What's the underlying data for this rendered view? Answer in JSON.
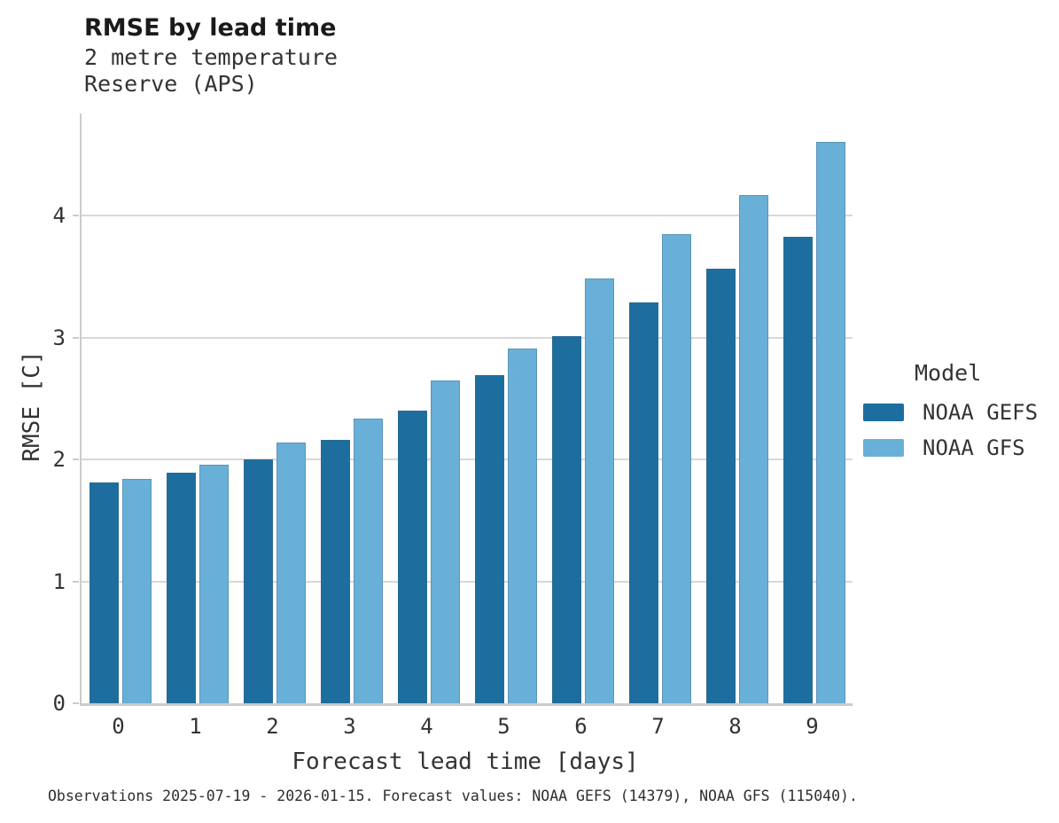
{
  "header": {
    "title": "RMSE by lead time",
    "subtitle_line1": "2 metre temperature",
    "subtitle_line2": "Reserve (APS)"
  },
  "legend": {
    "title": "Model",
    "entries": [
      {
        "label": "NOAA GEFS",
        "color": "#1d6e9f"
      },
      {
        "label": "NOAA GFS",
        "color": "#69b0d8"
      }
    ]
  },
  "caption": "Observations 2025-07-19 - 2026-01-15. Forecast values: NOAA GEFS (14379), NOAA GFS (115040).",
  "colors": {
    "gridline": "#d8d8d8",
    "axis_spine": "#cbcbcb",
    "series_dark_blue": "#1d6e9f",
    "series_light_blue": "#69b0d8"
  },
  "chart_data": {
    "type": "bar",
    "title": "RMSE by lead time",
    "subtitle": "2 metre temperature / Reserve (APS)",
    "xlabel": "Forecast lead time [days]",
    "ylabel": "RMSE [C]",
    "categories": [
      "0",
      "1",
      "2",
      "3",
      "4",
      "5",
      "6",
      "7",
      "8",
      "9"
    ],
    "series": [
      {
        "name": "NOAA GEFS",
        "color": "#1d6e9f",
        "values": [
          1.81,
          1.89,
          2.0,
          2.16,
          2.4,
          2.69,
          3.01,
          3.29,
          3.57,
          3.83
        ]
      },
      {
        "name": "NOAA GFS",
        "color": "#69b0d8",
        "values": [
          1.84,
          1.96,
          2.14,
          2.34,
          2.65,
          2.91,
          3.49,
          3.85,
          4.17,
          4.61
        ]
      }
    ],
    "ylim": [
      0,
      4.84
    ],
    "yticks": [
      0,
      1,
      2,
      3,
      4
    ],
    "grid": true,
    "legend_position": "right-outside"
  }
}
